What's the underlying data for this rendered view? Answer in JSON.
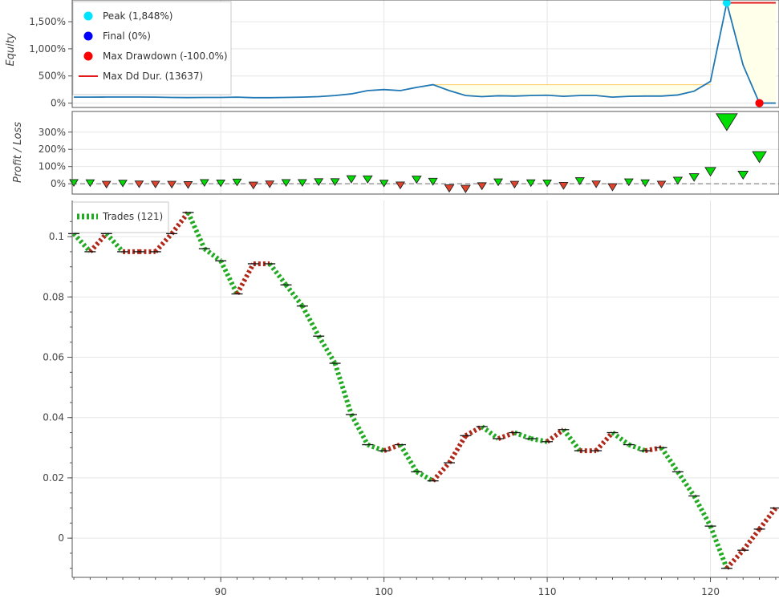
{
  "colors": {
    "equity_line": "#1f77b4",
    "drawdown_fill": "#ffffea",
    "drawdown_stroke": "#ffcb66",
    "peak_marker": "#00e5ff",
    "final_marker": "#0000ff",
    "maxdd_marker": "#ff0000",
    "maxdd_duration": "#e31a1c",
    "profit_marker": "#00dd00",
    "loss_marker": "#e0442c",
    "trade_win": "#22aa22",
    "trade_loss": "#b0281a",
    "grid": "#e6e6e6",
    "frame": "#555555"
  },
  "chart_data": [
    {
      "name": "equity",
      "type": "line",
      "ylabel": "Equity",
      "yticks": [
        "0%",
        "500%",
        "1,000%",
        "1,500%"
      ],
      "yticks_values": [
        0,
        500,
        1000,
        1500
      ],
      "ylim": [
        -80,
        1900
      ],
      "x": [
        81,
        82,
        83,
        84,
        85,
        86,
        87,
        88,
        89,
        90,
        91,
        92,
        93,
        94,
        95,
        96,
        97,
        98,
        99,
        100,
        101,
        102,
        103,
        104,
        105,
        106,
        107,
        108,
        109,
        110,
        111,
        112,
        113,
        114,
        115,
        116,
        117,
        118,
        119,
        120,
        121,
        122,
        123,
        124
      ],
      "values": [
        110,
        110,
        112,
        112,
        112,
        110,
        105,
        102,
        105,
        105,
        110,
        100,
        100,
        105,
        110,
        120,
        140,
        170,
        230,
        250,
        230,
        290,
        340,
        230,
        140,
        120,
        135,
        130,
        140,
        145,
        125,
        140,
        140,
        110,
        125,
        130,
        130,
        150,
        220,
        400,
        1848,
        700,
        0,
        0
      ],
      "drawdown_segments": [
        [
          87,
          89
        ],
        [
          103,
          120
        ],
        [
          121,
          124
        ]
      ],
      "legend": [
        {
          "label": "Peak (1,848%)",
          "marker": "circle",
          "color": "#00e5ff"
        },
        {
          "label": "Final (0%)",
          "marker": "circle",
          "color": "#0000ff"
        },
        {
          "label": "Max Drawdown (-100.0%)",
          "marker": "circle",
          "color": "#ff0000"
        },
        {
          "label": "Max Dd Dur. (13637)",
          "marker": "line",
          "color": "#e31a1c"
        }
      ],
      "peak": {
        "x": 121,
        "y": 1848
      },
      "final": {
        "x": 123,
        "y": 0
      },
      "max_drawdown": {
        "x": 123,
        "y": 0
      },
      "max_dd_duration": {
        "x_start": 121,
        "x_end": 124,
        "y": 1848
      }
    },
    {
      "name": "profit_loss",
      "type": "scatter",
      "ylabel": "Profit / Loss",
      "yticks": [
        "0%",
        "100%",
        "200%",
        "300%"
      ],
      "yticks_values": [
        0,
        100,
        200,
        300
      ],
      "ylim": [
        -60,
        420
      ],
      "points": [
        {
          "x": 81,
          "y": 5,
          "win": true
        },
        {
          "x": 82,
          "y": 4,
          "win": true
        },
        {
          "x": 83,
          "y": -5,
          "win": false
        },
        {
          "x": 84,
          "y": 2,
          "win": true
        },
        {
          "x": 85,
          "y": -3,
          "win": false
        },
        {
          "x": 86,
          "y": -4,
          "win": false
        },
        {
          "x": 87,
          "y": -5,
          "win": false
        },
        {
          "x": 88,
          "y": -7,
          "win": false
        },
        {
          "x": 89,
          "y": 5,
          "win": true
        },
        {
          "x": 90,
          "y": 3,
          "win": true
        },
        {
          "x": 91,
          "y": 8,
          "win": true
        },
        {
          "x": 92,
          "y": -10,
          "win": false
        },
        {
          "x": 93,
          "y": -3,
          "win": false
        },
        {
          "x": 94,
          "y": 5,
          "win": true
        },
        {
          "x": 95,
          "y": 5,
          "win": true
        },
        {
          "x": 96,
          "y": 10,
          "win": true
        },
        {
          "x": 97,
          "y": 10,
          "win": true
        },
        {
          "x": 98,
          "y": 26,
          "win": true
        },
        {
          "x": 99,
          "y": 25,
          "win": true
        },
        {
          "x": 100,
          "y": 2,
          "win": true
        },
        {
          "x": 101,
          "y": -9,
          "win": false
        },
        {
          "x": 102,
          "y": 24,
          "win": true
        },
        {
          "x": 103,
          "y": 12,
          "win": true
        },
        {
          "x": 104,
          "y": -27,
          "win": false
        },
        {
          "x": 105,
          "y": -30,
          "win": false
        },
        {
          "x": 106,
          "y": -14,
          "win": false
        },
        {
          "x": 107,
          "y": 9,
          "win": true
        },
        {
          "x": 108,
          "y": -5,
          "win": false
        },
        {
          "x": 109,
          "y": 4,
          "win": true
        },
        {
          "x": 110,
          "y": 3,
          "win": true
        },
        {
          "x": 111,
          "y": -12,
          "win": false
        },
        {
          "x": 112,
          "y": 15,
          "win": true
        },
        {
          "x": 113,
          "y": -3,
          "win": false
        },
        {
          "x": 114,
          "y": -20,
          "win": false
        },
        {
          "x": 115,
          "y": 9,
          "win": true
        },
        {
          "x": 116,
          "y": 4,
          "win": true
        },
        {
          "x": 117,
          "y": -4,
          "win": false
        },
        {
          "x": 118,
          "y": 18,
          "win": true
        },
        {
          "x": 119,
          "y": 37,
          "win": true
        },
        {
          "x": 120,
          "y": 70,
          "win": true
        },
        {
          "x": 121,
          "y": 358,
          "win": true
        },
        {
          "x": 122,
          "y": 50,
          "win": true
        },
        {
          "x": 123,
          "y": 155,
          "win": true
        }
      ]
    },
    {
      "name": "ohlc_trades",
      "type": "line",
      "yticks": [
        "0",
        "0.02",
        "0.04",
        "0.06",
        "0.08",
        "0.1"
      ],
      "yticks_values": [
        0,
        0.02,
        0.04,
        0.06,
        0.08,
        0.1
      ],
      "ylim": [
        -0.013,
        0.112
      ],
      "xticks": [
        "90",
        "100",
        "110",
        "120"
      ],
      "xticks_values": [
        90,
        100,
        110,
        120
      ],
      "xlim": [
        80.9,
        124.2
      ],
      "legend": [
        {
          "label": "Trades (121)",
          "marker": "dashed-line",
          "color": "#22aa22"
        }
      ],
      "close": [
        {
          "x": 81,
          "y": 0.101
        },
        {
          "x": 82,
          "y": 0.095
        },
        {
          "x": 83,
          "y": 0.101
        },
        {
          "x": 84,
          "y": 0.095
        },
        {
          "x": 85,
          "y": 0.095
        },
        {
          "x": 86,
          "y": 0.095
        },
        {
          "x": 87,
          "y": 0.101
        },
        {
          "x": 88,
          "y": 0.108
        },
        {
          "x": 89,
          "y": 0.096
        },
        {
          "x": 90,
          "y": 0.092
        },
        {
          "x": 91,
          "y": 0.081
        },
        {
          "x": 92,
          "y": 0.091
        },
        {
          "x": 93,
          "y": 0.091
        },
        {
          "x": 94,
          "y": 0.084
        },
        {
          "x": 95,
          "y": 0.077
        },
        {
          "x": 96,
          "y": 0.067
        },
        {
          "x": 97,
          "y": 0.058
        },
        {
          "x": 98,
          "y": 0.041
        },
        {
          "x": 99,
          "y": 0.031
        },
        {
          "x": 100,
          "y": 0.029
        },
        {
          "x": 101,
          "y": 0.031
        },
        {
          "x": 102,
          "y": 0.022
        },
        {
          "x": 103,
          "y": 0.019
        },
        {
          "x": 104,
          "y": 0.025
        },
        {
          "x": 105,
          "y": 0.034
        },
        {
          "x": 106,
          "y": 0.037
        },
        {
          "x": 107,
          "y": 0.033
        },
        {
          "x": 108,
          "y": 0.035
        },
        {
          "x": 109,
          "y": 0.033
        },
        {
          "x": 110,
          "y": 0.032
        },
        {
          "x": 111,
          "y": 0.036
        },
        {
          "x": 112,
          "y": 0.029
        },
        {
          "x": 113,
          "y": 0.029
        },
        {
          "x": 114,
          "y": 0.035
        },
        {
          "x": 115,
          "y": 0.031
        },
        {
          "x": 116,
          "y": 0.029
        },
        {
          "x": 117,
          "y": 0.03
        },
        {
          "x": 118,
          "y": 0.022
        },
        {
          "x": 119,
          "y": 0.014
        },
        {
          "x": 120,
          "y": 0.004
        },
        {
          "x": 121,
          "y": -0.01
        },
        {
          "x": 122,
          "y": -0.004
        },
        {
          "x": 123,
          "y": 0.003
        },
        {
          "x": 124,
          "y": 0.01
        }
      ]
    }
  ]
}
